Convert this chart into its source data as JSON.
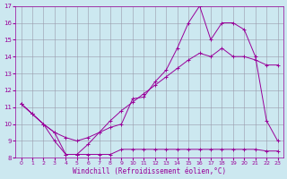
{
  "xlabel": "Windchill (Refroidissement éolien,°C)",
  "background_color": "#cce8f0",
  "grid_color": "#9999aa",
  "line_color": "#990099",
  "xlim": [
    -0.5,
    23.5
  ],
  "ylim": [
    8,
    17
  ],
  "xticks": [
    0,
    1,
    2,
    3,
    4,
    5,
    6,
    7,
    8,
    9,
    10,
    11,
    12,
    13,
    14,
    15,
    16,
    17,
    18,
    19,
    20,
    21,
    22,
    23
  ],
  "yticks": [
    8,
    9,
    10,
    11,
    12,
    13,
    14,
    15,
    16,
    17
  ],
  "line1_x": [
    0,
    1,
    2,
    3,
    4,
    5,
    6,
    7,
    8,
    9,
    10,
    11,
    12,
    13,
    14,
    15,
    16,
    17,
    18,
    19,
    20,
    21,
    22,
    23
  ],
  "line1_y": [
    11.2,
    10.6,
    10.0,
    9.0,
    8.2,
    8.2,
    8.2,
    8.2,
    8.2,
    8.5,
    8.5,
    8.5,
    8.5,
    8.5,
    8.5,
    8.5,
    8.5,
    8.5,
    8.5,
    8.5,
    8.5,
    8.5,
    8.4,
    8.4
  ],
  "line2_x": [
    0,
    1,
    2,
    3,
    4,
    5,
    6,
    7,
    8,
    9,
    10,
    11,
    12,
    13,
    14,
    15,
    16,
    17,
    18,
    19,
    20,
    21,
    22,
    23
  ],
  "line2_y": [
    11.2,
    10.6,
    10.0,
    9.5,
    8.2,
    8.2,
    8.8,
    9.5,
    9.8,
    10.0,
    11.5,
    11.6,
    12.5,
    13.2,
    14.5,
    16.0,
    17.0,
    15.0,
    16.0,
    16.0,
    15.6,
    14.0,
    10.2,
    9.0
  ],
  "line3_x": [
    0,
    1,
    2,
    3,
    4,
    5,
    6,
    7,
    8,
    9,
    10,
    11,
    12,
    13,
    14,
    15,
    16,
    17,
    18,
    19,
    20,
    21,
    22,
    23
  ],
  "line3_y": [
    11.2,
    10.6,
    10.0,
    9.5,
    9.2,
    9.0,
    9.2,
    9.5,
    10.2,
    10.8,
    11.3,
    11.8,
    12.3,
    12.8,
    13.3,
    13.8,
    14.2,
    14.0,
    14.5,
    14.0,
    14.0,
    13.8,
    13.5,
    13.5
  ]
}
